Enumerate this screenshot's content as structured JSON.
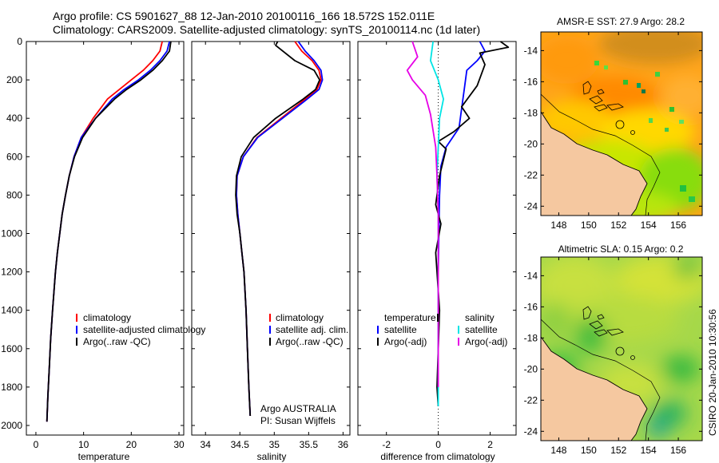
{
  "header": {
    "line1": "Argo profile: CS 5901627_88 12-Jan-2010 20100116_166 18.572S 152.011E",
    "line2": "Climatology: CARS2009. Satellite-adjusted climatology: synTS_20100114.nc (1d later)"
  },
  "side_stamp": "CSIRO 20-Jan-2010 10:30:56",
  "colors": {
    "climatology": "#ff0000",
    "satellite": "#0000ff",
    "argo": "#000000",
    "salinity_satellite": "#00e5e5",
    "salinity_argo": "#e600e6",
    "land": "#f5c8a0"
  },
  "chart_data": [
    {
      "type": "line",
      "id": "temperature",
      "xlabel": "temperature",
      "ylabel": "",
      "xlim": [
        -2,
        31
      ],
      "ylim": [
        0,
        2050
      ],
      "xticks": [
        0,
        10,
        20,
        30
      ],
      "yticks": [
        0,
        200,
        400,
        600,
        800,
        1000,
        1200,
        1400,
        1600,
        1800,
        2000
      ],
      "legend": [
        "climatology",
        "satellite-adjusted climatology",
        "Argo(..raw -QC)"
      ],
      "series": [
        {
          "name": "climatology",
          "color": "#ff0000",
          "x": [
            26.5,
            26.0,
            24.5,
            22.5,
            20.0,
            17.5,
            15.0,
            12.0,
            9.5,
            8.0,
            7.0,
            6.2,
            5.5,
            5.0,
            4.5,
            4.1,
            3.8,
            3.5,
            3.1,
            2.8,
            2.5,
            2.3
          ],
          "y": [
            0,
            50,
            100,
            150,
            200,
            250,
            300,
            400,
            500,
            600,
            700,
            800,
            900,
            1000,
            1100,
            1200,
            1300,
            1400,
            1550,
            1700,
            1850,
            1980
          ]
        },
        {
          "name": "satellite-adjusted climatology",
          "color": "#0000ff",
          "x": [
            28.0,
            27.5,
            26.0,
            24.0,
            21.5,
            18.5,
            16.0,
            12.5,
            9.5,
            8.0,
            7.0,
            6.2,
            5.5,
            5.0,
            4.5,
            4.1,
            3.8,
            3.5,
            3.1,
            2.8,
            2.5,
            2.3
          ],
          "y": [
            0,
            50,
            100,
            150,
            200,
            250,
            300,
            400,
            500,
            600,
            700,
            800,
            900,
            1000,
            1100,
            1200,
            1300,
            1400,
            1550,
            1700,
            1850,
            1980
          ]
        },
        {
          "name": "Argo(..raw -QC)",
          "color": "#000000",
          "x": [
            28.3,
            28.0,
            26.5,
            24.5,
            22.0,
            19.0,
            16.5,
            12.5,
            9.8,
            8.1,
            7.0,
            6.2,
            5.5,
            5.0,
            4.5,
            4.1,
            3.8,
            3.5,
            3.1,
            2.8,
            2.5,
            2.3
          ],
          "y": [
            0,
            50,
            100,
            150,
            200,
            250,
            300,
            400,
            500,
            600,
            700,
            800,
            900,
            1000,
            1100,
            1200,
            1300,
            1400,
            1550,
            1700,
            1850,
            1980
          ]
        }
      ]
    },
    {
      "type": "line",
      "id": "salinity",
      "xlabel": "salinity",
      "xlim": [
        33.8,
        36.1
      ],
      "ylim": [
        0,
        2050
      ],
      "xticks": [
        34,
        34.5,
        35,
        35.5,
        36
      ],
      "legend": [
        "climatology",
        "satellite adj. clim.",
        "Argo(..raw -QC)"
      ],
      "annotation": [
        "Argo AUSTRALIA",
        "PI: Susan Wijffels"
      ],
      "series": [
        {
          "name": "climatology",
          "color": "#ff0000",
          "x": [
            35.3,
            35.4,
            35.55,
            35.65,
            35.68,
            35.62,
            35.45,
            35.1,
            34.75,
            34.55,
            34.46,
            34.45,
            34.47,
            34.5,
            34.53,
            34.56,
            34.59,
            34.61,
            34.63,
            34.65
          ],
          "y": [
            0,
            50,
            100,
            150,
            200,
            250,
            300,
            400,
            500,
            600,
            700,
            800,
            900,
            1000,
            1100,
            1200,
            1400,
            1600,
            1800,
            1950
          ]
        },
        {
          "name": "satellite adj. clim.",
          "color": "#0000ff",
          "x": [
            35.35,
            35.45,
            35.58,
            35.68,
            35.7,
            35.65,
            35.48,
            35.12,
            34.76,
            34.55,
            34.46,
            34.45,
            34.47,
            34.5,
            34.53,
            34.56,
            34.59,
            34.61,
            34.63,
            34.65
          ],
          "y": [
            0,
            50,
            100,
            150,
            200,
            250,
            300,
            400,
            500,
            600,
            700,
            800,
            900,
            1000,
            1100,
            1200,
            1400,
            1600,
            1800,
            1950
          ]
        },
        {
          "name": "Argo(..raw -QC)",
          "color": "#000000",
          "x": [
            35.05,
            35.02,
            35.3,
            35.58,
            35.66,
            35.6,
            35.42,
            35.02,
            34.7,
            34.52,
            34.45,
            34.44,
            34.46,
            34.5,
            34.53,
            34.56,
            34.59,
            34.61,
            34.63,
            34.65
          ],
          "y": [
            0,
            20,
            100,
            150,
            200,
            250,
            300,
            400,
            500,
            600,
            700,
            800,
            900,
            1000,
            1100,
            1200,
            1400,
            1600,
            1800,
            1950
          ]
        }
      ]
    },
    {
      "type": "line",
      "id": "difference",
      "xlabel": "difference from climatology",
      "xlim": [
        -3.1,
        3.0
      ],
      "ylim": [
        0,
        2050
      ],
      "xticks": [
        -2,
        0,
        2
      ],
      "zero_line": 0,
      "legend_titles": [
        "temperature",
        "salinity"
      ],
      "legend": [
        "satellite",
        "Argo(-adj)",
        "satellite",
        "Argo(-adj)"
      ],
      "series": [
        {
          "name": "satellite",
          "group": "temperature",
          "color": "#0000ff",
          "x": [
            1.6,
            1.8,
            1.5,
            1.1,
            1.0,
            0.9,
            0.8,
            0.55,
            0.3,
            0.1,
            0.05,
            0.02,
            0.0,
            0.0,
            0.0,
            0.0,
            0.0
          ],
          "y": [
            0,
            50,
            100,
            150,
            250,
            350,
            450,
            500,
            550,
            650,
            800,
            1000,
            1200,
            1400,
            1600,
            1800,
            1900
          ]
        },
        {
          "name": "Argo(-adj)",
          "group": "temperature",
          "color": "#000000",
          "x": [
            2.4,
            2.7,
            1.6,
            1.8,
            1.5,
            0.9,
            1.2,
            0.6,
            0.0,
            0.3,
            0.05,
            -0.1,
            0.1,
            -0.1,
            0.05,
            0.0,
            -0.05,
            0.0
          ],
          "y": [
            0,
            30,
            60,
            120,
            230,
            340,
            400,
            470,
            520,
            560,
            700,
            850,
            950,
            1100,
            1400,
            1600,
            1800,
            1900
          ]
        },
        {
          "name": "satellite",
          "group": "salinity",
          "color": "#00e5e5",
          "x": [
            -0.2,
            -0.3,
            0.0,
            0.2,
            0.05,
            0.0,
            -0.05,
            0.0,
            0.0,
            0.0,
            0.0,
            0.0
          ],
          "y": [
            0,
            100,
            200,
            300,
            400,
            550,
            700,
            900,
            1200,
            1500,
            1800,
            1900
          ]
        },
        {
          "name": "Argo(-adj)",
          "group": "salinity",
          "color": "#e600e6",
          "x": [
            -1.0,
            -0.8,
            -1.2,
            -1.0,
            -0.5,
            -0.3,
            -0.1,
            -0.05,
            0.0,
            0.0,
            0.0,
            0.0
          ],
          "y": [
            0,
            80,
            150,
            200,
            280,
            380,
            550,
            700,
            900,
            1200,
            1500,
            1800
          ]
        }
      ]
    },
    {
      "type": "heatmap",
      "id": "sst_map",
      "title": "AMSR-E SST: 27.9 Argo: 28.2",
      "xlim": [
        146.8,
        157.6
      ],
      "ylim": [
        -24.6,
        -12.8
      ],
      "xticks": [
        148,
        150,
        152,
        154,
        156
      ],
      "yticks": [
        -14,
        -16,
        -18,
        -20,
        -22,
        -24
      ],
      "profile_marker": {
        "lon": 152.0,
        "lat": -18.57
      }
    },
    {
      "type": "heatmap",
      "id": "sla_map",
      "title": "Altimetric SLA: 0.15 Argo: 0.2",
      "xlim": [
        146.8,
        157.6
      ],
      "ylim": [
        -24.6,
        -12.8
      ],
      "xticks": [
        148,
        150,
        152,
        154,
        156
      ],
      "yticks": [
        -14,
        -16,
        -18,
        -20,
        -22,
        -24
      ],
      "profile_marker": {
        "lon": 152.0,
        "lat": -18.57
      }
    }
  ]
}
